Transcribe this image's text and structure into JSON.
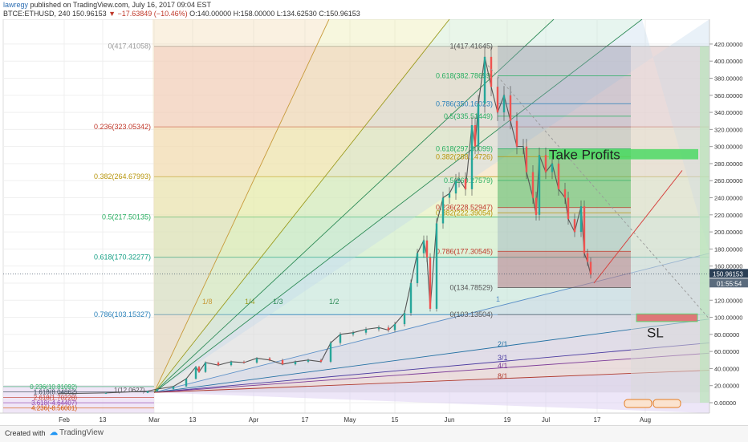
{
  "header": {
    "username": "lawregy",
    "published_text": "published on TradingView.com, July 16, 2017 09:04 EST",
    "symbol_line": "BTCE:ETHUSD, 240",
    "price": "150.96153",
    "change": "▼ −17.63849 (−10.46%)",
    "ohlc": "O:140.00000 H:158.00000 L:134.62530 C:150.96153"
  },
  "footer": {
    "created_with": "Created with",
    "brand": "TradingView"
  },
  "colors": {
    "up": "#26a69a",
    "down": "#ef5350",
    "price_line": "#555555",
    "current_price_box": "#2a3f55"
  },
  "chart_data": {
    "type": "candlestick",
    "symbol": "BTCE:ETHUSD",
    "interval": "240",
    "ylim": [
      0,
      430
    ],
    "y_ticks": [
      0,
      20,
      40,
      60,
      80,
      100,
      120,
      140,
      160,
      180,
      200,
      220,
      240,
      260,
      280,
      300,
      320,
      340,
      360,
      380,
      400,
      420
    ],
    "y_tick_labels": [
      "0.00000",
      "20.00000",
      "40.00000",
      "60.00000",
      "80.00000",
      "100.00000",
      "120.00000",
      "140.00000",
      "160.00000",
      "180.00000",
      "200.00000",
      "220.00000",
      "240.00000",
      "260.00000",
      "280.00000",
      "300.00000",
      "320.00000",
      "340.00000",
      "360.00000",
      "380.00000",
      "400.00000",
      "420.00000"
    ],
    "x_ticks": [
      {
        "day": -28,
        "label": "Feb"
      },
      {
        "day": -16,
        "label": "13"
      },
      {
        "day": 0,
        "label": "Mar"
      },
      {
        "day": 12,
        "label": "13"
      },
      {
        "day": 31,
        "label": "Apr"
      },
      {
        "day": 47,
        "label": "17"
      },
      {
        "day": 61,
        "label": "May"
      },
      {
        "day": 75,
        "label": "15"
      },
      {
        "day": 92,
        "label": "Jun"
      },
      {
        "day": 110,
        "label": "19"
      },
      {
        "day": 122,
        "label": "Jul"
      },
      {
        "day": 138,
        "label": "17"
      },
      {
        "day": 153,
        "label": "Aug"
      }
    ],
    "current_price": {
      "value": 150.96153,
      "label": "150.96153",
      "countdown": "01:55:54"
    },
    "price_series": [
      [
        -30,
        10.5
      ],
      [
        -15,
        11.5
      ],
      [
        -2,
        13.5
      ],
      [
        1,
        16
      ],
      [
        6,
        19
      ],
      [
        10,
        28
      ],
      [
        13,
        42
      ],
      [
        14,
        36
      ],
      [
        16,
        47
      ],
      [
        20,
        44
      ],
      [
        24,
        48
      ],
      [
        28,
        47
      ],
      [
        32,
        52
      ],
      [
        36,
        50
      ],
      [
        40,
        45
      ],
      [
        44,
        48
      ],
      [
        48,
        50
      ],
      [
        52,
        48
      ],
      [
        55,
        70
      ],
      [
        58,
        80
      ],
      [
        62,
        82
      ],
      [
        66,
        86
      ],
      [
        70,
        88
      ],
      [
        73,
        85
      ],
      [
        75,
        92
      ],
      [
        78,
        105
      ],
      [
        80,
        140
      ],
      [
        82,
        175
      ],
      [
        84,
        190
      ],
      [
        85,
        170
      ],
      [
        86,
        110
      ],
      [
        88,
        210
      ],
      [
        90,
        240
      ],
      [
        92,
        245
      ],
      [
        94,
        260
      ],
      [
        95,
        262
      ],
      [
        97,
        250
      ],
      [
        99,
        325
      ],
      [
        100,
        300
      ],
      [
        101,
        350
      ],
      [
        103,
        405
      ],
      [
        105,
        370
      ],
      [
        107,
        340
      ],
      [
        109,
        360
      ],
      [
        111,
        330
      ],
      [
        113,
        300
      ],
      [
        115,
        300
      ],
      [
        116,
        270
      ],
      [
        118,
        240
      ],
      [
        119,
        220
      ],
      [
        120,
        290
      ],
      [
        122,
        270
      ],
      [
        124,
        280
      ],
      [
        126,
        250
      ],
      [
        128,
        240
      ],
      [
        129,
        215
      ],
      [
        131,
        200
      ],
      [
        133,
        230
      ],
      [
        134,
        175
      ],
      [
        135,
        165
      ],
      [
        136,
        150
      ]
    ],
    "fib_retracement_left": {
      "labels": [
        {
          "level": "0",
          "text": "0(417.41058)",
          "value": 417.41
        },
        {
          "level": "0.236",
          "text": "0.236(323.05342)",
          "value": 323.05
        },
        {
          "level": "0.382",
          "text": "0.382(264.67993)",
          "value": 264.68
        },
        {
          "level": "0.5",
          "text": "0.5(217.50135)",
          "value": 217.5
        },
        {
          "level": "0.618",
          "text": "0.618(170.32277)",
          "value": 170.32
        },
        {
          "level": "0.786",
          "text": "0.786(103.15327)",
          "value": 103.15
        }
      ],
      "small_labels": [
        "0.236(10.81092)",
        "1.618(8.04862)",
        "2.618(1.70228)",
        "3.618(-4.64407)",
        "4.236(-8.56001)"
      ],
      "top_small_label": "1(12.0627)"
    },
    "fib_retracement_right": {
      "labels": [
        {
          "text": "1(417.41645)",
          "value": 417.42
        },
        {
          "text": "0.618(382.78659)",
          "value": 382.79
        },
        {
          "text": "0.786(350.16023)",
          "value": 350.16
        },
        {
          "text": "0.5(335.51449)",
          "value": 335.51
        },
        {
          "text": "0.618(297.30099)",
          "value": 297.3
        },
        {
          "text": "0.382(288.14726)",
          "value": 288.15
        },
        {
          "text": "0.5(260.27579)",
          "value": 260.28
        },
        {
          "text": "0.236(228.52947)",
          "value": 228.53
        },
        {
          "text": "0.382(222.39054)",
          "value": 222.39
        },
        {
          "text": "0.786(177.30545)",
          "value": 177.31
        },
        {
          "text": "0(134.78529)",
          "value": 134.79
        },
        {
          "text": "0(103.13504)",
          "value": 103.14
        }
      ]
    },
    "gann_fan": {
      "ratios": [
        "1/8",
        "1/4",
        "1/3",
        "1/2",
        "1",
        "2/1",
        "3/1",
        "4/1",
        "8/1"
      ]
    },
    "annotations": [
      {
        "text": "Take Profits",
        "value": 290
      },
      {
        "text": "SL",
        "value": 82
      }
    ],
    "target_lines": {
      "take_profit": 291,
      "stop_loss": 100
    }
  }
}
